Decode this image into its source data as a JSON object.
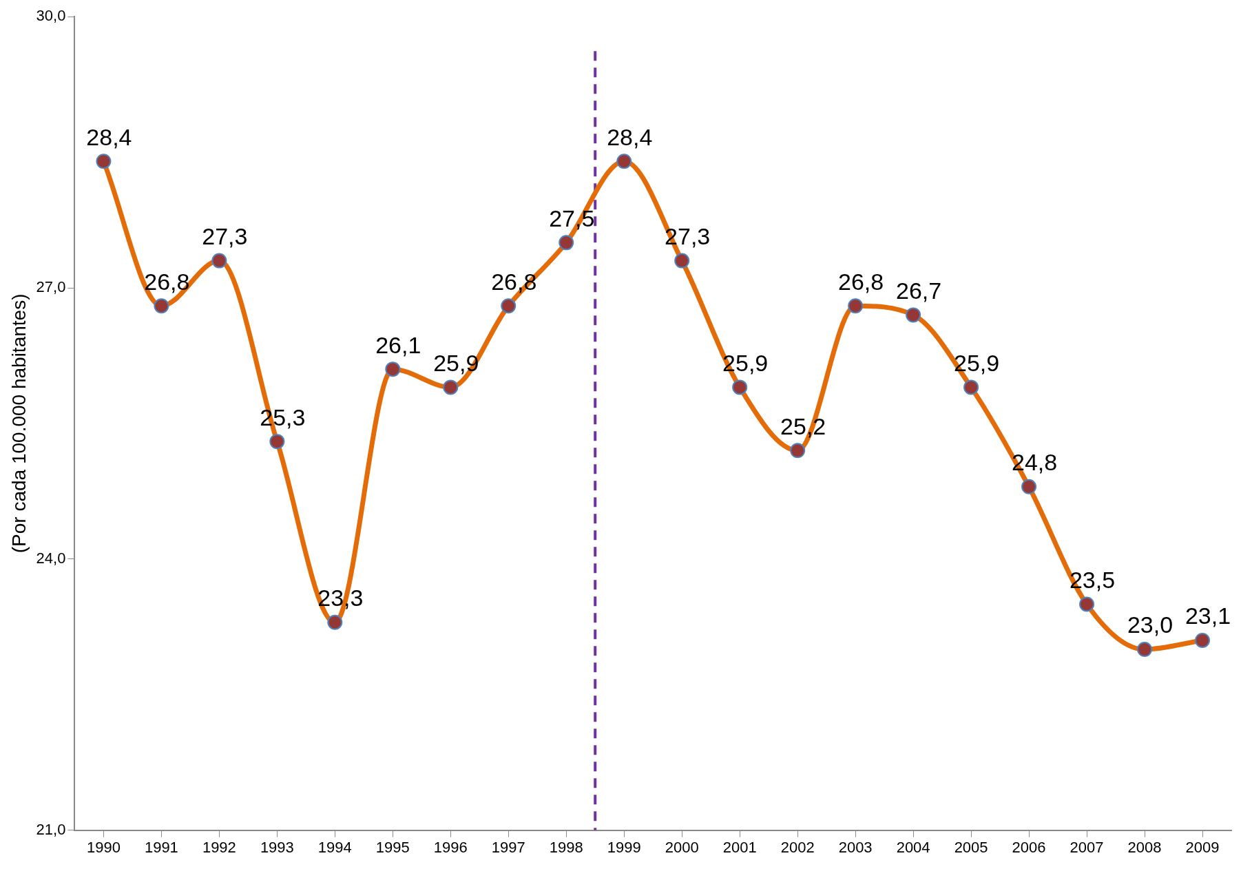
{
  "chart_data": {
    "type": "line",
    "ylabel": "(Por cada 100.000 habitantes)",
    "x": [
      1990,
      1991,
      1992,
      1993,
      1994,
      1995,
      1996,
      1997,
      1998,
      1999,
      2000,
      2001,
      2002,
      2003,
      2004,
      2005,
      2006,
      2007,
      2008,
      2009
    ],
    "xlim": [
      1989.5,
      2009.5
    ],
    "xticks": [
      1990,
      1991,
      1992,
      1993,
      1994,
      1995,
      1996,
      1997,
      1998,
      1999,
      2000,
      2001,
      2002,
      2003,
      2004,
      2005,
      2006,
      2007,
      2008,
      2009
    ],
    "series": [
      {
        "color": "#e36c09",
        "values": [
          28.4,
          26.8,
          27.3,
          25.3,
          23.3,
          26.1,
          25.9,
          26.8,
          27.5,
          28.4,
          27.3,
          25.9,
          25.2,
          26.8,
          26.7,
          25.9,
          24.8,
          23.5,
          23.0,
          23.1
        ],
        "value_labels": [
          "28,4",
          "26,8",
          "27,3",
          "25,3",
          "23,3",
          "26,1",
          "25,9",
          "26,8",
          "27,5",
          "28,4",
          "27,3",
          "25,9",
          "25,2",
          "26,8",
          "26,7",
          "25,9",
          "24,8",
          "23,5",
          "23,0",
          "23,1"
        ]
      }
    ],
    "ylim": [
      21,
      30
    ],
    "yticks": [
      {
        "value": 21,
        "label": "21,0"
      },
      {
        "value": 24,
        "label": "24,0"
      },
      {
        "value": 27,
        "label": "27,0"
      },
      {
        "value": 30,
        "label": "30,0"
      }
    ],
    "ref_lines": [
      {
        "axis": "x",
        "value": 1998.5,
        "color": "#7030a0",
        "line_style": "dashed"
      }
    ],
    "marker": "circle",
    "grid": false,
    "legend": false
  }
}
